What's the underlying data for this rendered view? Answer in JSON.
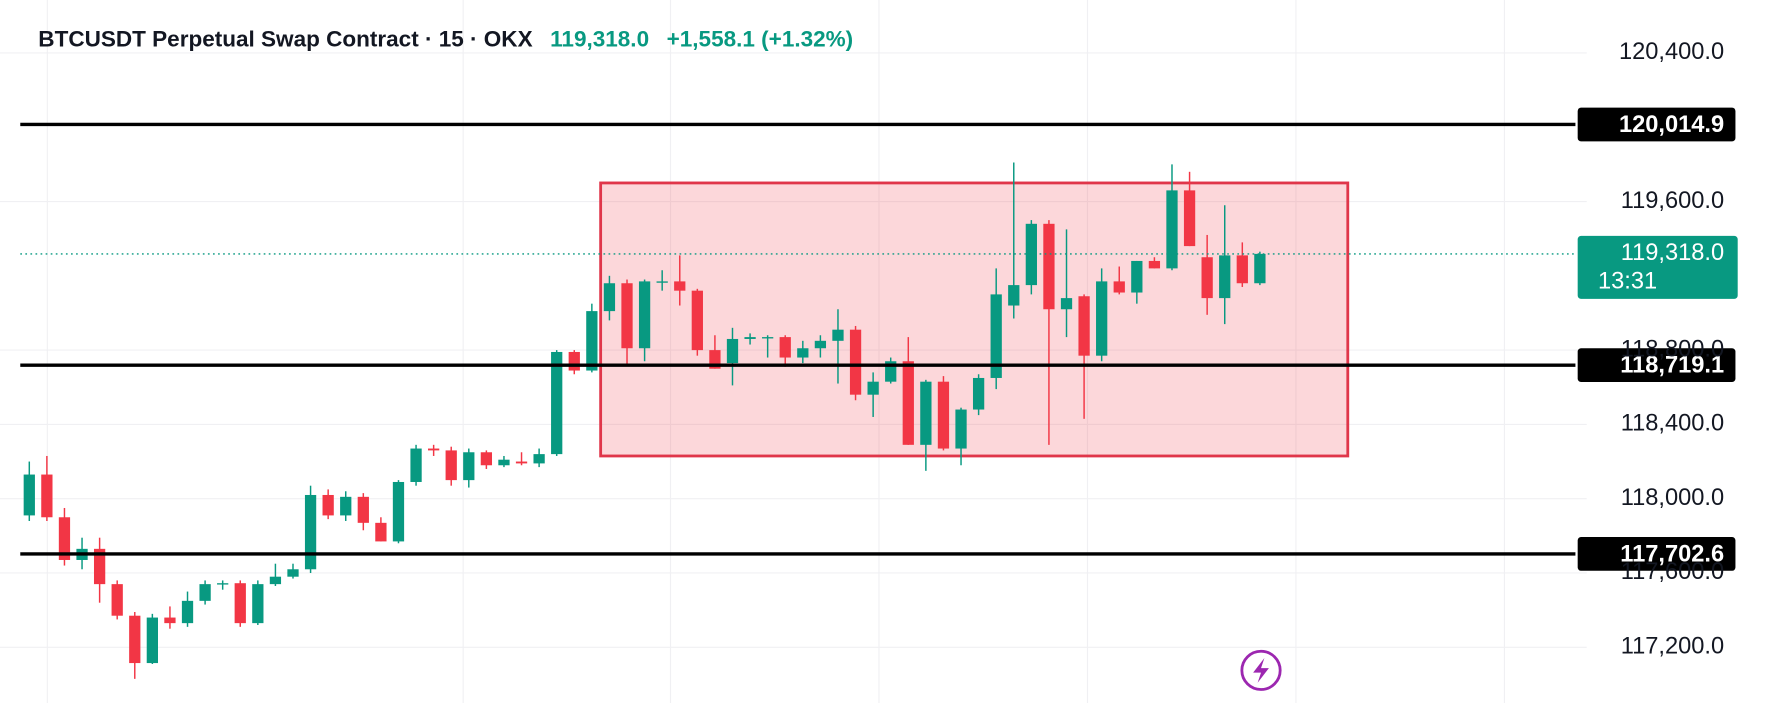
{
  "chart_data": {
    "type": "candlestick",
    "title": "BTCUSDT Perpetual Swap Contract · 15 · OKX",
    "change_label": "+1,558.1 (+1.32%)",
    "last_price": {
      "value": 119318.0,
      "label": "119,318.0"
    },
    "countdown": "13:31",
    "up_color": "#089981",
    "down_color": "#f23645",
    "ylim": [
      116900,
      120685
    ],
    "yticks": [
      {
        "value": 120400,
        "label": "120,400.0"
      },
      {
        "value": 119600,
        "label": "119,600.0"
      },
      {
        "value": 118800,
        "label": "118,800.0"
      },
      {
        "value": 118400,
        "label": "118,400.0"
      },
      {
        "value": 118000,
        "label": "118,000.0"
      },
      {
        "value": 117600,
        "label": "117,600.0"
      },
      {
        "value": 117200,
        "label": "117,200.0"
      }
    ],
    "grid": true,
    "levels": [
      {
        "value": 120014.9,
        "label": "120,014.9"
      },
      {
        "value": 118719.1,
        "label": "118,719.1"
      },
      {
        "value": 117702.6,
        "label": "117,702.6"
      }
    ],
    "box": [
      118230,
      119700
    ],
    "candles": {
      "open": [
        117910,
        118130,
        117900,
        117670,
        117730,
        117540,
        117370,
        117115,
        117360,
        117330,
        117450,
        117540,
        117545,
        117330,
        117540,
        117580,
        117620,
        118020,
        117910,
        118010,
        117870,
        117770,
        118090,
        118270,
        118260,
        118100,
        118250,
        118180,
        118200,
        118190,
        118240,
        118790,
        118690,
        119010,
        119160,
        118810,
        119170,
        119170,
        119120,
        118800,
        118730,
        118860,
        118870,
        118870,
        118760,
        118810,
        118850,
        118910,
        118560,
        118630,
        118740,
        118290,
        118630,
        118270,
        118480,
        118650,
        119040,
        119150,
        119480,
        119020,
        119090,
        118770,
        119170,
        119110,
        119280,
        119240,
        119660,
        119300,
        119080,
        119310,
        119160
      ],
      "high": [
        118200,
        118230,
        117950,
        117790,
        117790,
        117560,
        117390,
        117380,
        117420,
        117500,
        117560,
        117560,
        117560,
        117560,
        117650,
        117650,
        118070,
        118050,
        118040,
        118030,
        117900,
        118100,
        118290,
        118290,
        118280,
        118270,
        118260,
        118230,
        118250,
        118270,
        118800,
        118800,
        119050,
        119200,
        119180,
        119180,
        119230,
        119310,
        119130,
        118880,
        118920,
        118890,
        118880,
        118880,
        118850,
        118880,
        119020,
        118930,
        118680,
        118760,
        118870,
        118640,
        118660,
        118490,
        118670,
        119240,
        119810,
        119500,
        119500,
        119450,
        119100,
        119240,
        119250,
        119280,
        119300,
        119800,
        119760,
        119420,
        119580,
        119380,
        119330
      ],
      "low": [
        117880,
        117880,
        117640,
        117620,
        117440,
        117350,
        117030,
        117110,
        117300,
        117310,
        117430,
        117510,
        117310,
        117320,
        117530,
        117570,
        117600,
        117890,
        117880,
        117830,
        117770,
        117760,
        118070,
        118230,
        118070,
        118060,
        118160,
        118170,
        118180,
        118170,
        118230,
        118670,
        118680,
        118960,
        118720,
        118740,
        119120,
        119040,
        118770,
        118700,
        118610,
        118830,
        118760,
        118710,
        118730,
        118760,
        118620,
        118530,
        118440,
        118620,
        118290,
        118150,
        118260,
        118180,
        118450,
        118590,
        118970,
        119100,
        118290,
        118870,
        118430,
        118740,
        119100,
        119050,
        119240,
        119230,
        119360,
        118990,
        118940,
        119140,
        119150
      ],
      "close": [
        118130,
        117900,
        117670,
        117730,
        117540,
        117370,
        117115,
        117360,
        117330,
        117450,
        117540,
        117545,
        117330,
        117540,
        117580,
        117620,
        118020,
        117910,
        118010,
        117870,
        117770,
        118090,
        118270,
        118260,
        118100,
        118250,
        118180,
        118210,
        118190,
        118240,
        118790,
        118690,
        119010,
        119160,
        118810,
        119170,
        119170,
        119120,
        118800,
        118700,
        118860,
        118870,
        118870,
        118760,
        118810,
        118850,
        118910,
        118560,
        118630,
        118740,
        118290,
        118630,
        118270,
        118480,
        118650,
        119100,
        119150,
        119480,
        119020,
        119080,
        118770,
        119170,
        119110,
        119280,
        119240,
        119660,
        119360,
        119080,
        119310,
        119160,
        119318
      ]
    }
  }
}
